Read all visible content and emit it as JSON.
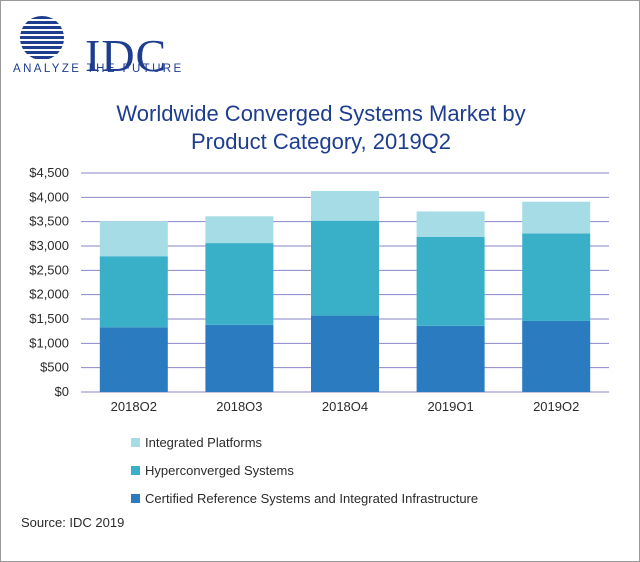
{
  "brand": {
    "name": "IDC",
    "tagline": "ANALYZE THE FUTURE"
  },
  "title_lines": [
    "Worldwide Converged Systems Market by",
    "Product Category, 2019Q2"
  ],
  "source": "Source: IDC 2019",
  "colors": {
    "integrated_platforms": "#a6dce6",
    "hyperconverged": "#3ab0c8",
    "certified_reference": "#2b7bc1",
    "brand": "#1d3d8f",
    "grid": "#8a86c9"
  },
  "chart_data": {
    "type": "bar",
    "stacked": true,
    "title": "Worldwide Converged Systems Market by Product Category, 2019Q2",
    "xlabel": "",
    "ylabel": "",
    "categories": [
      "2018Q2",
      "2018Q3",
      "2018Q4",
      "2019Q1",
      "2019Q2"
    ],
    "ylim": [
      0,
      4500
    ],
    "yticks": [
      0,
      500,
      1000,
      1500,
      2000,
      2500,
      3000,
      3500,
      4000,
      4500
    ],
    "ytick_labels": [
      "$0",
      "$500",
      "$1,000",
      "$1,500",
      "$2,000",
      "$2,500",
      "$3,000",
      "$3,500",
      "$4,000",
      "$4,500"
    ],
    "grid": true,
    "series": [
      {
        "name": "Certified Reference Systems and Integrated Infrastructure",
        "color": "#2b7bc1",
        "values": [
          1330,
          1380,
          1570,
          1360,
          1460
        ]
      },
      {
        "name": "Hyperconverged Systems",
        "color": "#3ab0c8",
        "values": [
          1460,
          1680,
          1950,
          1830,
          1800
        ]
      },
      {
        "name": "Integrated Platforms",
        "color": "#a6dce6",
        "values": [
          720,
          550,
          610,
          520,
          650
        ]
      }
    ],
    "legend_order": [
      "Integrated Platforms",
      "Hyperconverged Systems",
      "Certified Reference Systems and Integrated Infrastructure"
    ],
    "legend_position": "bottom"
  }
}
